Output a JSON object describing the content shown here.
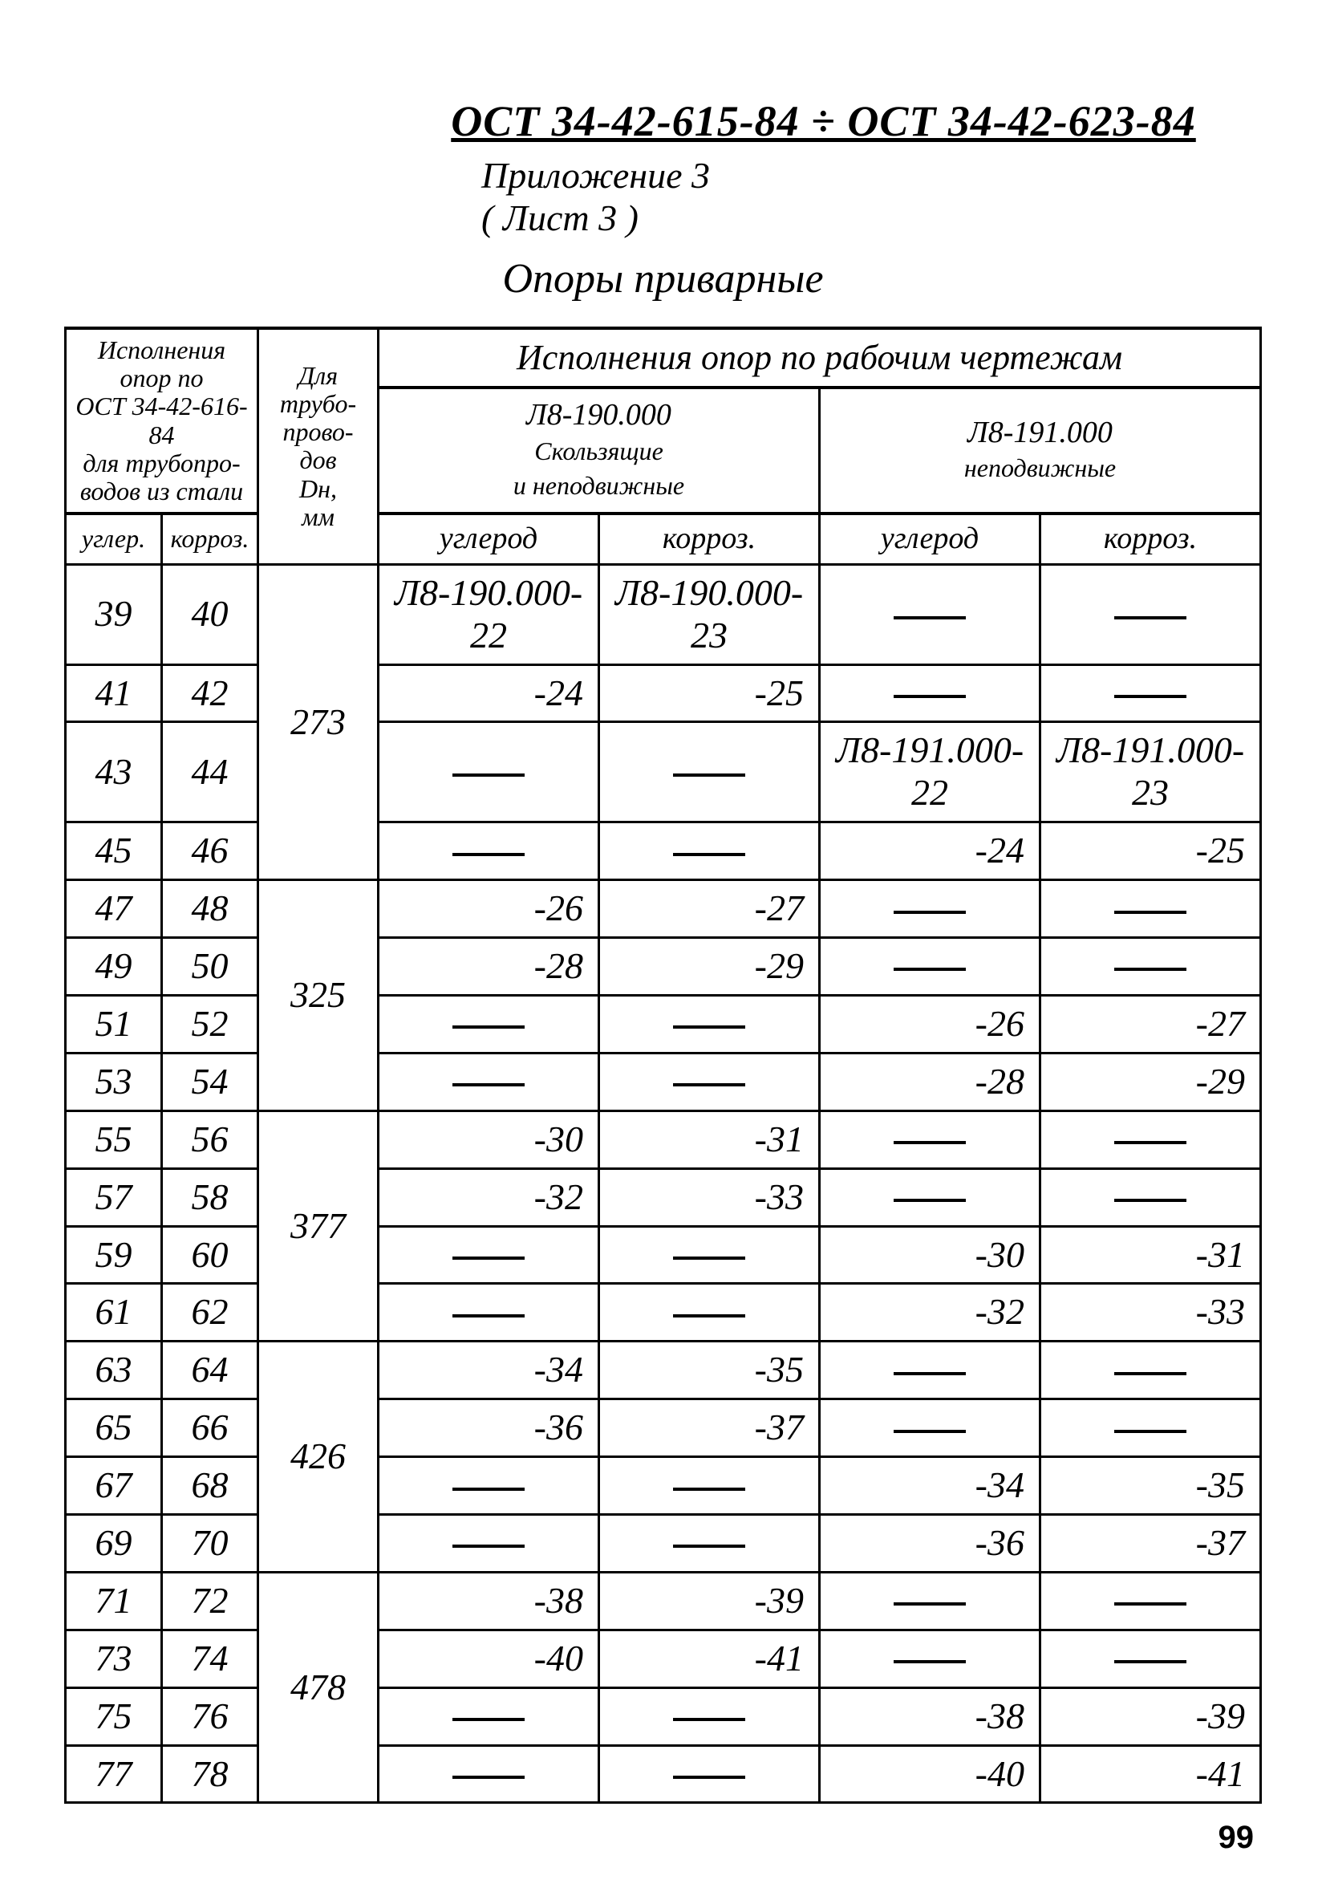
{
  "header": {
    "doc_number": "ОСТ 34-42-615-84 ÷ ОСТ 34-42-623-84",
    "appendix": "Приложение 3",
    "sheet": "( Лист 3 )",
    "title": "Опоры приварные"
  },
  "table": {
    "head": {
      "col_group_1_l1": "Исполнения",
      "col_group_1_l2": "опор по",
      "col_group_1_l3": "ОСТ 34-42-616-84",
      "col_group_1_l4": "для трубопро-",
      "col_group_1_l5": "водов из стали",
      "sub_a": "углер.",
      "sub_b": "корроз.",
      "col2_l1": "Для",
      "col2_l2": "трубо-",
      "col2_l3": "прово-",
      "col2_l4": "дов",
      "col2_l5": "Dн,",
      "col2_l6": "мм",
      "group2_top": "Исполнения опор по рабочим чертежам",
      "g2_left": "Л8-190.000",
      "g2_right": "Л8-191.000",
      "g2_left_sub_l1": "Скользящие",
      "g2_left_sub_l2": "и неподвижные",
      "g2_right_sub": "неподвижные",
      "s_ugl": "углерод",
      "s_kor": "корроз."
    },
    "groups": [
      {
        "dn": "273",
        "rows": [
          {
            "a": "39",
            "b": "40",
            "c": "Л8-190.000-22",
            "d": "Л8-190.000-23",
            "e": "—",
            "f": "—"
          },
          {
            "a": "41",
            "b": "42",
            "c": "-24",
            "d": "-25",
            "e": "—",
            "f": "—"
          },
          {
            "a": "43",
            "b": "44",
            "c": "—",
            "d": "—",
            "e": "Л8-191.000-22",
            "f": "Л8-191.000-23"
          },
          {
            "a": "45",
            "b": "46",
            "c": "—",
            "d": "—",
            "e": "-24",
            "f": "-25"
          }
        ]
      },
      {
        "dn": "325",
        "rows": [
          {
            "a": "47",
            "b": "48",
            "c": "-26",
            "d": "-27",
            "e": "—",
            "f": "—"
          },
          {
            "a": "49",
            "b": "50",
            "c": "-28",
            "d": "-29",
            "e": "—",
            "f": "—"
          },
          {
            "a": "51",
            "b": "52",
            "c": "—",
            "d": "—",
            "e": "-26",
            "f": "-27"
          },
          {
            "a": "53",
            "b": "54",
            "c": "—",
            "d": "—",
            "e": "-28",
            "f": "-29"
          }
        ]
      },
      {
        "dn": "377",
        "rows": [
          {
            "a": "55",
            "b": "56",
            "c": "-30",
            "d": "-31",
            "e": "—",
            "f": "—"
          },
          {
            "a": "57",
            "b": "58",
            "c": "-32",
            "d": "-33",
            "e": "—",
            "f": "—"
          },
          {
            "a": "59",
            "b": "60",
            "c": "—",
            "d": "—",
            "e": "-30",
            "f": "-31"
          },
          {
            "a": "61",
            "b": "62",
            "c": "—",
            "d": "—",
            "e": "-32",
            "f": "-33"
          }
        ]
      },
      {
        "dn": "426",
        "rows": [
          {
            "a": "63",
            "b": "64",
            "c": "-34",
            "d": "-35",
            "e": "—",
            "f": "—"
          },
          {
            "a": "65",
            "b": "66",
            "c": "-36",
            "d": "-37",
            "e": "—",
            "f": "—"
          },
          {
            "a": "67",
            "b": "68",
            "c": "—",
            "d": "—",
            "e": "-34",
            "f": "-35"
          },
          {
            "a": "69",
            "b": "70",
            "c": "—",
            "d": "—",
            "e": "-36",
            "f": "-37"
          }
        ]
      },
      {
        "dn": "478",
        "rows": [
          {
            "a": "71",
            "b": "72",
            "c": "-38",
            "d": "-39",
            "e": "—",
            "f": "—"
          },
          {
            "a": "73",
            "b": "74",
            "c": "-40",
            "d": "-41",
            "e": "—",
            "f": "—"
          },
          {
            "a": "75",
            "b": "76",
            "c": "—",
            "d": "—",
            "e": "-38",
            "f": "-39"
          },
          {
            "a": "77",
            "b": "78",
            "c": "—",
            "d": "—",
            "e": "-40",
            "f": "-41"
          }
        ]
      }
    ]
  },
  "page_number": "99"
}
